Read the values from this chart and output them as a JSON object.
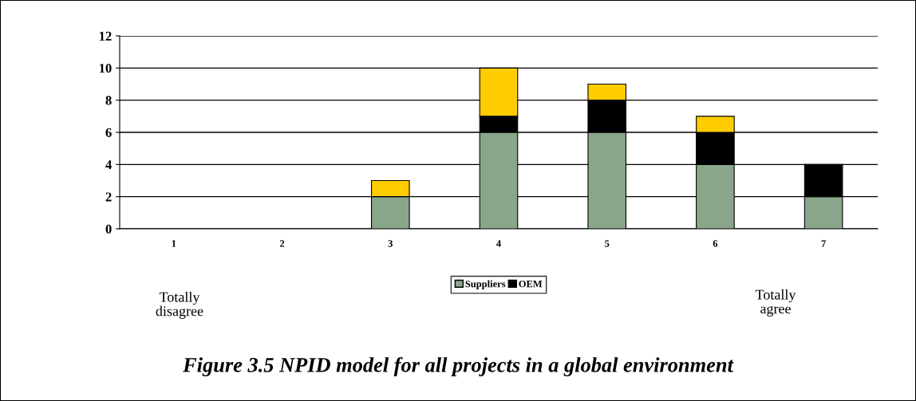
{
  "chart_data": {
    "type": "bar",
    "title": "Figure 3.5 NPID model for all projects in a global environment",
    "categories": [
      "1",
      "2",
      "3",
      "4",
      "5",
      "6",
      "7"
    ],
    "series": [
      {
        "name": "Suppliers",
        "color": "#8aa68a",
        "values": [
          0,
          0,
          2,
          6,
          6,
          4,
          2
        ]
      },
      {
        "name": "OEM",
        "color": "#000000",
        "values": [
          0,
          0,
          0,
          1,
          2,
          2,
          2
        ]
      },
      {
        "color": "#ffcc00",
        "values": [
          0,
          0,
          1,
          3,
          1,
          1,
          0
        ]
      }
    ],
    "stacked": true,
    "ylim": [
      0,
      12
    ],
    "yticks": [
      0,
      2,
      4,
      6,
      8,
      10,
      12
    ],
    "grid": "y",
    "legend": "bottom",
    "annotations": [
      "Totally disagree",
      "Totally agree"
    ]
  }
}
